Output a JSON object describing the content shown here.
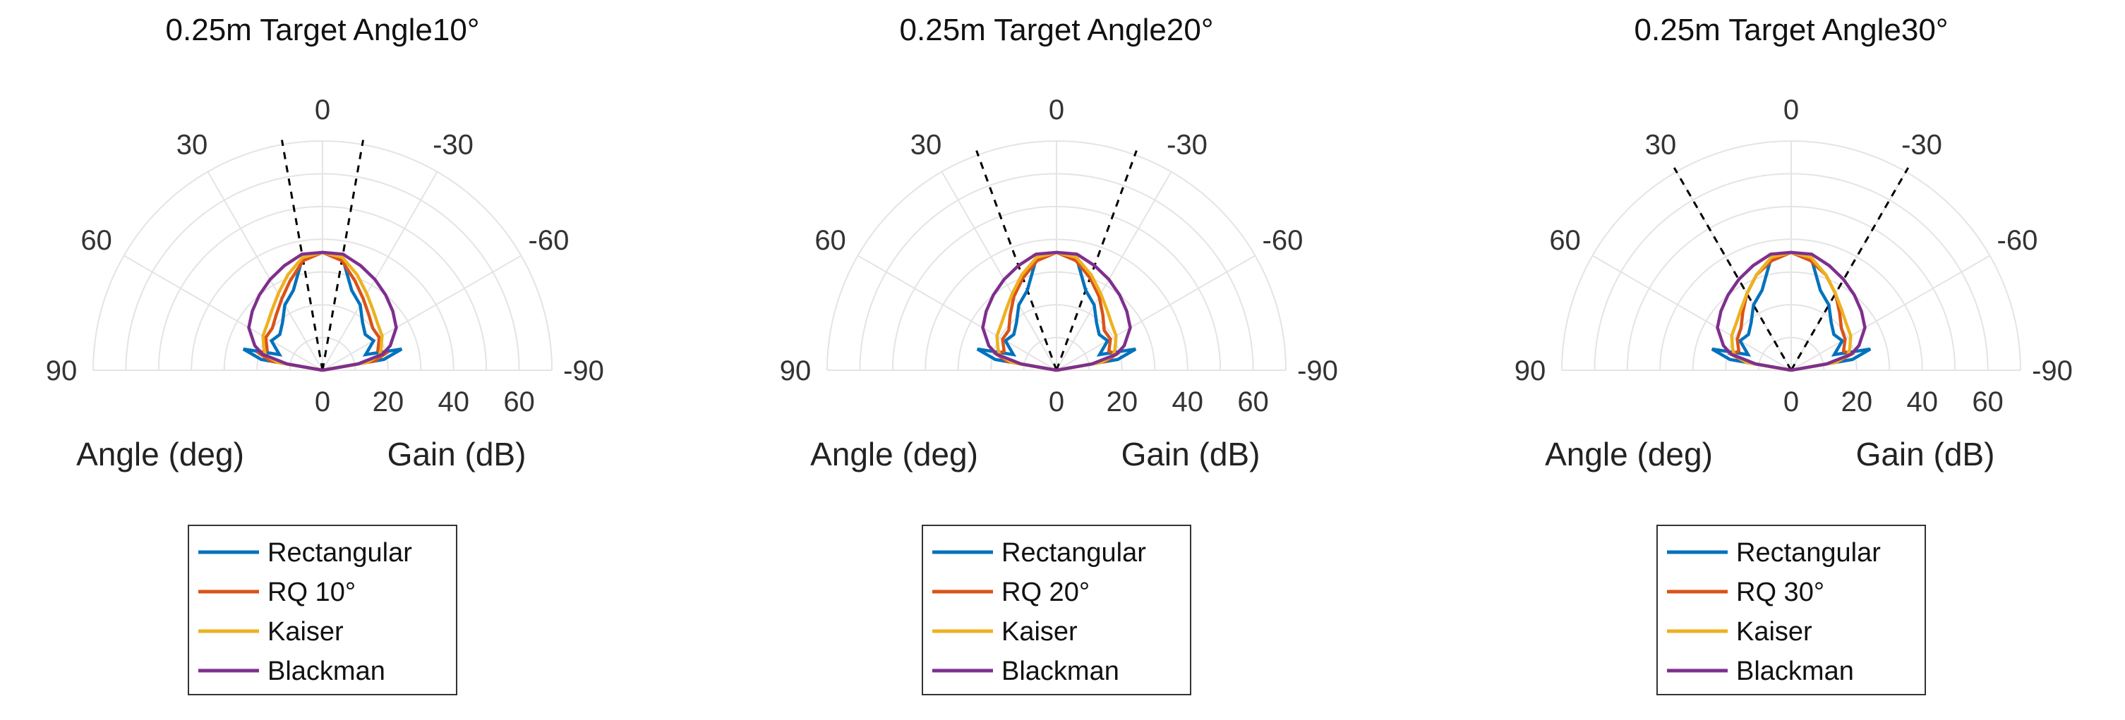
{
  "colors": {
    "rectangular": "#0072BD",
    "rq": "#D95319",
    "kaiser": "#EDB120",
    "blackman": "#7E2F8E",
    "target_line": "#000000",
    "grid": "#e4e4e4"
  },
  "chart_data": [
    {
      "type": "polar-line",
      "title": "0.25m Target Angle10°",
      "theta_range": [
        -90,
        90
      ],
      "r_lim": [
        0,
        70
      ],
      "theta_ticks": [
        "90",
        "60",
        "30",
        "0",
        "-30",
        "-60",
        "-90"
      ],
      "r_ticks": [
        "0",
        "20",
        "40",
        "60"
      ],
      "xlabel": "Angle (deg)",
      "ylabel": "Gain (dB)",
      "target_angle": 10,
      "angles": [
        -90,
        -80,
        -75,
        -70,
        -60,
        -50,
        -40,
        -30,
        -20,
        -10,
        0,
        10,
        20,
        30,
        40,
        50,
        60,
        70,
        75,
        80,
        90
      ],
      "series": [
        {
          "name": "Rectangular",
          "values": [
            0,
            19,
            25,
            14,
            18,
            17,
            19,
            23,
            26,
            35,
            36,
            35,
            26,
            23,
            19,
            17,
            18,
            14,
            25,
            19,
            0
          ]
        },
        {
          "name": "RQ 10°",
          "values": [
            0,
            16,
            20,
            18,
            20,
            20,
            22,
            25,
            29,
            34,
            36,
            34,
            29,
            25,
            22,
            20,
            20,
            18,
            20,
            16,
            0
          ]
        },
        {
          "name": "Kaiser",
          "values": [
            0,
            14,
            18,
            19,
            21,
            22,
            24,
            27,
            31,
            35,
            36,
            35,
            31,
            27,
            24,
            22,
            21,
            19,
            18,
            14,
            0
          ]
        },
        {
          "name": "Blackman",
          "values": [
            0,
            11,
            19,
            22,
            26,
            28,
            30,
            32,
            34,
            36,
            36,
            36,
            34,
            32,
            30,
            28,
            26,
            22,
            19,
            11,
            0
          ]
        }
      ],
      "legend": [
        "Rectangular",
        "RQ 10°",
        "Kaiser",
        "Blackman"
      ],
      "legend_placement": "bottom"
    },
    {
      "type": "polar-line",
      "title": "0.25m Target Angle20°",
      "theta_range": [
        -90,
        90
      ],
      "r_lim": [
        0,
        70
      ],
      "theta_ticks": [
        "90",
        "60",
        "30",
        "0",
        "-30",
        "-60",
        "-90"
      ],
      "r_ticks": [
        "0",
        "20",
        "40",
        "60"
      ],
      "xlabel": "Angle (deg)",
      "ylabel": "Gain (dB)",
      "target_angle": 20,
      "angles": [
        -90,
        -80,
        -75,
        -70,
        -60,
        -50,
        -40,
        -30,
        -20,
        -10,
        0,
        10,
        20,
        30,
        40,
        50,
        60,
        70,
        75,
        80,
        90
      ],
      "series": [
        {
          "name": "Rectangular",
          "values": [
            0,
            19,
            25,
            14,
            18,
            17,
            19,
            23,
            26,
            35,
            36,
            35,
            26,
            23,
            19,
            17,
            18,
            14,
            25,
            19,
            0
          ]
        },
        {
          "name": "RQ 20°",
          "values": [
            0,
            15,
            19,
            17,
            19,
            19,
            22,
            26,
            30,
            34,
            36,
            34,
            30,
            26,
            22,
            19,
            19,
            17,
            19,
            15,
            0
          ]
        },
        {
          "name": "Kaiser",
          "values": [
            0,
            14,
            18,
            19,
            21,
            22,
            24,
            27,
            31,
            35,
            36,
            35,
            31,
            27,
            24,
            22,
            21,
            19,
            18,
            14,
            0
          ]
        },
        {
          "name": "Blackman",
          "values": [
            0,
            11,
            19,
            22,
            26,
            28,
            30,
            32,
            34,
            36,
            36,
            36,
            34,
            32,
            30,
            28,
            26,
            22,
            19,
            11,
            0
          ]
        }
      ],
      "legend": [
        "Rectangular",
        "RQ 20°",
        "Kaiser",
        "Blackman"
      ],
      "legend_placement": "bottom"
    },
    {
      "type": "polar-line",
      "title": "0.25m Target Angle30°",
      "theta_range": [
        -90,
        90
      ],
      "r_lim": [
        0,
        70
      ],
      "theta_ticks": [
        "90",
        "60",
        "30",
        "0",
        "-30",
        "-60",
        "-90"
      ],
      "r_ticks": [
        "0",
        "20",
        "40",
        "60"
      ],
      "xlabel": "Angle (deg)",
      "ylabel": "Gain (dB)",
      "target_angle": 30,
      "angles": [
        -90,
        -80,
        -75,
        -70,
        -60,
        -50,
        -40,
        -30,
        -20,
        -10,
        0,
        10,
        20,
        30,
        40,
        50,
        60,
        70,
        75,
        80,
        90
      ],
      "series": [
        {
          "name": "Rectangular",
          "values": [
            0,
            19,
            25,
            14,
            18,
            17,
            19,
            23,
            26,
            35,
            36,
            35,
            26,
            23,
            19,
            17,
            18,
            14,
            25,
            19,
            0
          ]
        },
        {
          "name": "RQ 30°",
          "values": [
            0,
            14,
            19,
            17,
            19,
            20,
            23,
            27,
            31,
            34,
            36,
            34,
            31,
            27,
            23,
            20,
            19,
            17,
            19,
            14,
            0
          ]
        },
        {
          "name": "Kaiser",
          "values": [
            0,
            14,
            18,
            19,
            21,
            22,
            24,
            27,
            31,
            35,
            36,
            35,
            31,
            27,
            24,
            22,
            21,
            19,
            18,
            14,
            0
          ]
        },
        {
          "name": "Blackman",
          "values": [
            0,
            11,
            19,
            22,
            26,
            28,
            30,
            32,
            34,
            36,
            36,
            36,
            34,
            32,
            30,
            28,
            26,
            22,
            19,
            11,
            0
          ]
        }
      ],
      "legend": [
        "Rectangular",
        "RQ 30°",
        "Kaiser",
        "Blackman"
      ],
      "legend_placement": "bottom"
    }
  ]
}
